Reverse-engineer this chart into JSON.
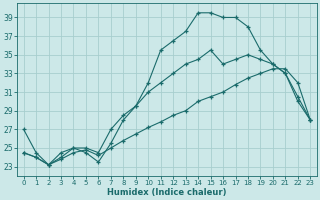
{
  "xlabel": "Humidex (Indice chaleur)",
  "bg_color": "#cce8e8",
  "grid_color": "#a8cece",
  "line_color": "#1a6b6b",
  "xlim": [
    -0.5,
    23.5
  ],
  "ylim": [
    22.0,
    40.5
  ],
  "xticks": [
    0,
    1,
    2,
    3,
    4,
    5,
    6,
    7,
    8,
    9,
    10,
    11,
    12,
    13,
    14,
    15,
    16,
    17,
    18,
    19,
    20,
    21,
    22,
    23
  ],
  "yticks": [
    23,
    25,
    27,
    29,
    31,
    33,
    35,
    37,
    39
  ],
  "series": [
    {
      "x": [
        0,
        1,
        2,
        3,
        4,
        5,
        6,
        7,
        8,
        9,
        10,
        11,
        12,
        13,
        14,
        15,
        16,
        17,
        18,
        19,
        20,
        21,
        22,
        23
      ],
      "y": [
        27,
        24.5,
        23.2,
        24.5,
        25,
        24.5,
        23.5,
        25.5,
        28,
        29.5,
        32,
        35.5,
        36.5,
        37.5,
        39.5,
        39.5,
        39,
        39,
        38,
        35.5,
        34,
        33,
        30,
        28
      ]
    },
    {
      "x": [
        0,
        1,
        2,
        3,
        4,
        5,
        6,
        7,
        8,
        9,
        10,
        11,
        12,
        13,
        14,
        15,
        16,
        17,
        18,
        19,
        20,
        21,
        22,
        23
      ],
      "y": [
        24.5,
        24,
        23.2,
        24,
        25,
        25,
        24.5,
        27,
        28.5,
        29.5,
        31,
        32,
        33,
        34,
        34.5,
        35.5,
        34,
        34.5,
        35,
        34.5,
        34,
        33,
        30.5,
        28
      ]
    },
    {
      "x": [
        0,
        1,
        2,
        3,
        4,
        5,
        6,
        7,
        8,
        9,
        10,
        11,
        12,
        13,
        14,
        15,
        16,
        17,
        18,
        19,
        20,
        21,
        22,
        23
      ],
      "y": [
        24.5,
        24,
        23.2,
        23.8,
        24.5,
        24.8,
        24.2,
        25,
        25.8,
        26.5,
        27.2,
        27.8,
        28.5,
        29,
        30,
        30.5,
        31,
        31.8,
        32.5,
        33,
        33.5,
        33.5,
        32,
        28
      ]
    }
  ]
}
